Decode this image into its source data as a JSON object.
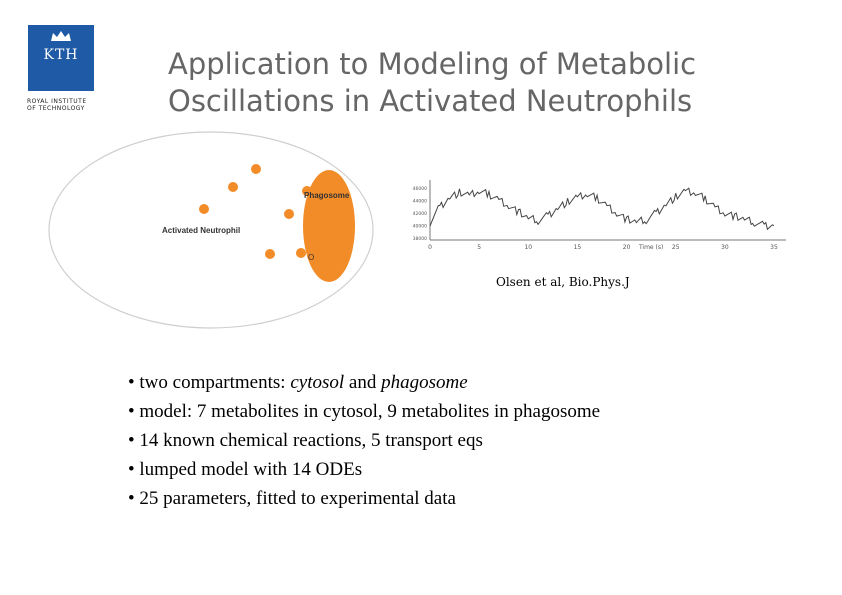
{
  "logo": {
    "label": "KTH",
    "subtitle_line1": "ROYAL INSTITUTE",
    "subtitle_line2": "OF TECHNOLOGY",
    "color": "#1f5aa6"
  },
  "title": {
    "line1": "Application to Modeling of Metabolic",
    "line2": "Oscillations in Activated Neutrophils"
  },
  "diagram": {
    "cell_label": "Activated Neutrophil",
    "phagosome_label": "Phagosome",
    "small_label": "O",
    "dot_color": "#f28c28"
  },
  "chart_data": {
    "type": "line",
    "xlabel": "Time (s)",
    "x_ticks": [
      "0",
      "5",
      "10",
      "15",
      "20",
      "25",
      "30",
      "35"
    ],
    "y_ticks": [
      "46000",
      "44000",
      "42000",
      "40000",
      "38000"
    ],
    "xlim": [
      0,
      35
    ],
    "ylim": [
      38000,
      47000
    ],
    "x": [
      0,
      1,
      2,
      3,
      4,
      5,
      6,
      7,
      8,
      9,
      10,
      11,
      12,
      13,
      14,
      15,
      16,
      17,
      18,
      19,
      20,
      21,
      22,
      23,
      24,
      25,
      26,
      27,
      28,
      29,
      30,
      31,
      32,
      33,
      34,
      35
    ],
    "y": [
      40500,
      43000,
      44500,
      45300,
      44800,
      45500,
      45000,
      44200,
      43200,
      42200,
      41200,
      40800,
      41600,
      42800,
      43800,
      44500,
      45000,
      44400,
      43200,
      42000,
      41000,
      40600,
      40900,
      42000,
      43400,
      44600,
      45500,
      45200,
      44300,
      43000,
      42000,
      41500,
      41000,
      40500,
      40000,
      40000
    ]
  },
  "citation": "Olsen et al, Bio.Phys.J",
  "bullets": {
    "b1_prefix": "• two compartments: ",
    "b1_cytosol": "cytosol",
    "b1_and": " and ",
    "b1_phagosome": "phagosome",
    "b2": "• model: 7 metabolites in cytosol, 9 metabolites in phagosome",
    "b3": "• 14 known chemical reactions, 5 transport eqs",
    "b4": "• lumped model with 14 ODEs",
    "b5": "• 25 parameters, fitted to experimental data"
  }
}
